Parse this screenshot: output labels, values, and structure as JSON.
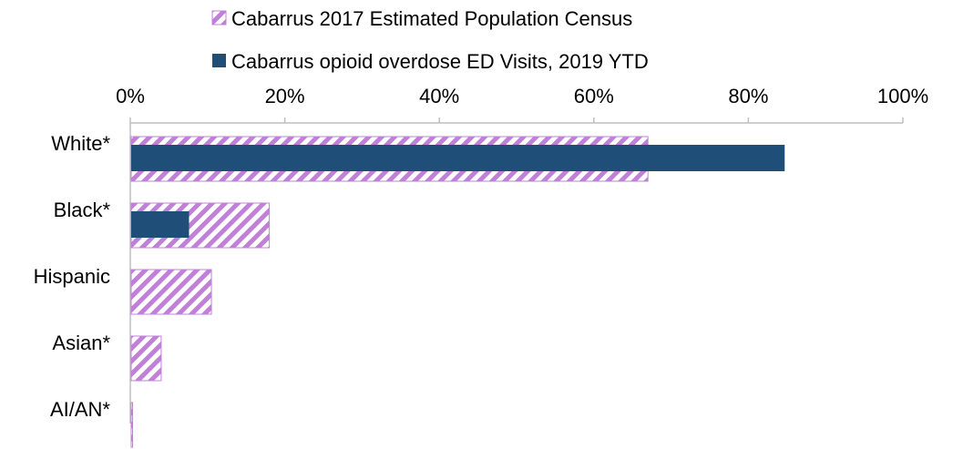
{
  "chart_data": {
    "type": "bar",
    "orientation": "horizontal",
    "categories": [
      "White*",
      "Black*",
      "Hispanic",
      "Asian*",
      "AI/AN*"
    ],
    "series": [
      {
        "name": "Cabarrus 2017 Estimated Population Census",
        "values": [
          67,
          18,
          10.5,
          4,
          0.3
        ],
        "color": "#c080d8",
        "pattern": "diagonal-hatch"
      },
      {
        "name": "Cabarrus opioid overdose ED Visits, 2019 YTD",
        "values": [
          84.7,
          7.6,
          0,
          0,
          0
        ],
        "color": "#1f4e79",
        "pattern": "solid"
      }
    ],
    "xlim": [
      0,
      100
    ],
    "x_ticks": [
      "0%",
      "20%",
      "40%",
      "60%",
      "80%",
      "100%"
    ],
    "x_tick_values": [
      0,
      20,
      40,
      60,
      80,
      100
    ],
    "axis_position": "top",
    "legend_position": "top",
    "grid": false,
    "axis_color": "#bfbfbf"
  }
}
